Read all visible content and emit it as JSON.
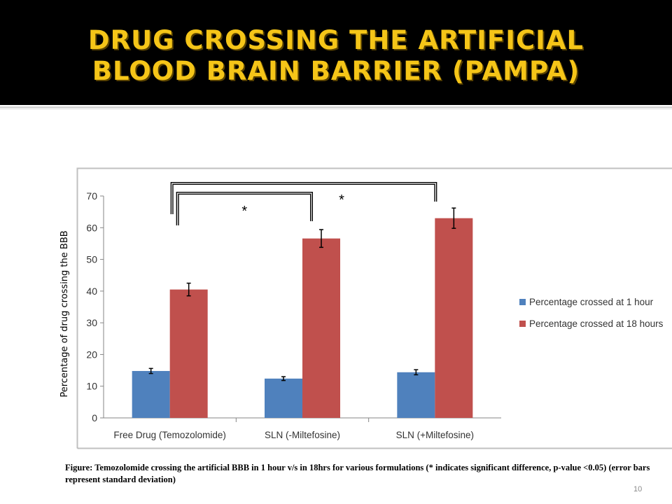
{
  "slide": {
    "title": "DRUG CROSSING THE ARTIFICIAL\nBLOOD BRAIN BARRIER (PAMPA)",
    "caption": "Figure: Temozolomide crossing the artificial BBB in 1 hour v/s in 18hrs for various formulations (* indicates significant difference, p-value <0.05) (error bars represent standard deviation)",
    "slide_number": "10"
  },
  "colors": {
    "title": "#f5c518",
    "series_1h": "#4f81bd",
    "series_18h": "#c0504d"
  },
  "chart_data": {
    "type": "bar",
    "title": "",
    "ylabel": "Percentage of drug crossing the BBB",
    "xlabel": "",
    "ylim": [
      0,
      70
    ],
    "yticks": [
      0,
      10,
      20,
      30,
      40,
      50,
      60,
      70
    ],
    "categories": [
      "Free Drug (Temozolomide)",
      "SLN (-Miltefosine)",
      "SLN (+Miltefosine)"
    ],
    "series": [
      {
        "name": "Percentage crossed at 1 hour",
        "values": [
          14.8,
          12.4,
          14.4
        ],
        "errors": [
          0.8,
          0.6,
          0.8
        ]
      },
      {
        "name": "Percentage crossed at 18 hours",
        "values": [
          40.5,
          56.6,
          63.0
        ],
        "errors": [
          2.0,
          2.8,
          3.2
        ]
      }
    ],
    "legend_position": "right",
    "grid": false,
    "significance": [
      {
        "label": "*",
        "from_category": 0,
        "to_category": 1
      },
      {
        "label": "*",
        "from_category": 0,
        "to_category": 2
      }
    ]
  }
}
